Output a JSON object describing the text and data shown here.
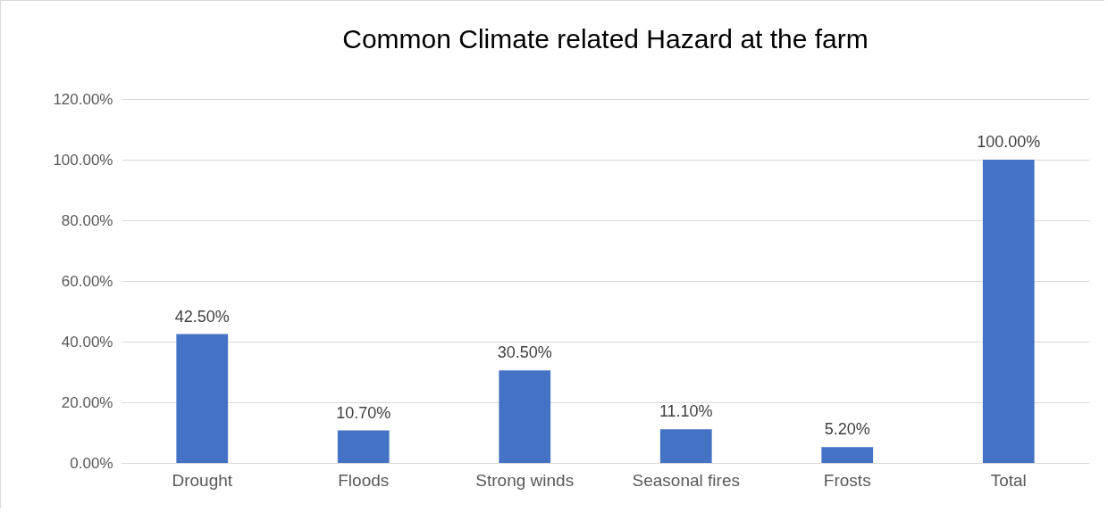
{
  "chart_data": {
    "type": "bar",
    "title": "Common Climate related Hazard at the farm",
    "categories": [
      "Drought",
      "Floods",
      "Strong winds",
      "Seasonal fires",
      "Frosts",
      "Total"
    ],
    "values": [
      42.5,
      10.7,
      30.5,
      11.1,
      5.2,
      100
    ],
    "value_labels": [
      "42.50%",
      "10.70%",
      "30.50%",
      "11.10%",
      "5.20%",
      "100.00%"
    ],
    "color": "#4472c4",
    "ylim": [
      0,
      120
    ],
    "yticks": [
      {
        "value": 0,
        "label": "0.00%"
      },
      {
        "value": 20,
        "label": "20.00%"
      },
      {
        "value": 40,
        "label": "40.00%"
      },
      {
        "value": 60,
        "label": "60.00%"
      },
      {
        "value": 80,
        "label": "80.00%"
      },
      {
        "value": 100,
        "label": "100.00%"
      },
      {
        "value": 120,
        "label": "120.00%"
      }
    ],
    "grid": true
  }
}
